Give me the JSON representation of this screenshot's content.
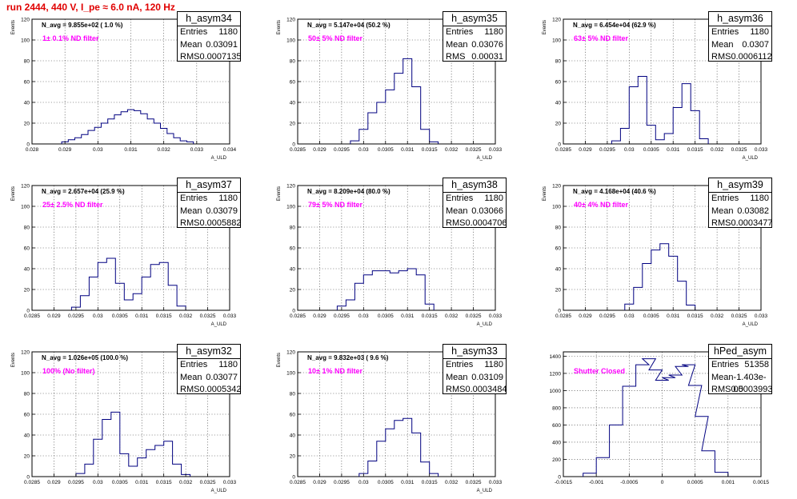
{
  "run_title": "run 2444,   440 V, I_pe ≈ 6.0 nA, 120 Hz",
  "panels": [
    {
      "name": "h_asym34",
      "n_avg": "N_avg = 9.855e+02 ( 1.0 %)",
      "filter": "1± 0.1% ND filter",
      "stats": {
        "entries_label": "Entries",
        "entries": "1180",
        "mean_label": "Mean",
        "mean": "0.03091",
        "rms_label": "RMS",
        "rms": "0.0007135"
      },
      "x_title": "A_ULD",
      "y_title": "Events",
      "x_ticks": [
        "0.028",
        "0.029",
        "0.03",
        "0.031",
        "0.032",
        "0.033",
        "0.034"
      ],
      "y_ticks": [
        "0",
        "20",
        "40",
        "60",
        "80",
        "100",
        "120"
      ]
    },
    {
      "name": "h_asym35",
      "n_avg": "N_avg = 5.147e+04 (50.2 %)",
      "filter": "50± 5% ND filter",
      "stats": {
        "entries_label": "Entries",
        "entries": "1180",
        "mean_label": "Mean",
        "mean": "0.03076",
        "rms_label": "RMS",
        "rms": "0.00031"
      },
      "x_title": "A_ULD",
      "y_title": "Events",
      "x_ticks": [
        "0.0285",
        "0.029",
        "0.0295",
        "0.03",
        "0.0305",
        "0.031",
        "0.0315",
        "0.032",
        "0.0325",
        "0.033"
      ],
      "y_ticks": [
        "0",
        "20",
        "40",
        "60",
        "80",
        "100",
        "120"
      ]
    },
    {
      "name": "h_asym36",
      "n_avg": "N_avg = 6.454e+04 (62.9 %)",
      "filter": "63± 5% ND filter",
      "stats": {
        "entries_label": "Entries",
        "entries": "1180",
        "mean_label": "Mean",
        "mean": "0.0307",
        "rms_label": "RMS",
        "rms": "0.0006112"
      },
      "x_title": "A_ULD",
      "y_title": "Events",
      "x_ticks": [
        "0.0285",
        "0.029",
        "0.0295",
        "0.03",
        "0.0305",
        "0.031",
        "0.0315",
        "0.032",
        "0.0325",
        "0.033"
      ],
      "y_ticks": [
        "0",
        "20",
        "40",
        "60",
        "80",
        "100",
        "120"
      ]
    },
    {
      "name": "h_asym37",
      "n_avg": "N_avg = 2.657e+04 (25.9 %)",
      "filter": "25± 2.5% ND filter",
      "stats": {
        "entries_label": "Entries",
        "entries": "1180",
        "mean_label": "Mean",
        "mean": "0.03079",
        "rms_label": "RMS",
        "rms": "0.0005882"
      },
      "x_title": "A_ULD",
      "y_title": "Events",
      "x_ticks": [
        "0.0285",
        "0.029",
        "0.0295",
        "0.03",
        "0.0305",
        "0.031",
        "0.0315",
        "0.032",
        "0.0325",
        "0.033"
      ],
      "y_ticks": [
        "0",
        "20",
        "40",
        "60",
        "80",
        "100",
        "120"
      ]
    },
    {
      "name": "h_asym38",
      "n_avg": "N_avg = 8.209e+04 (80.0 %)",
      "filter": "79± 5% ND filter",
      "stats": {
        "entries_label": "Entries",
        "entries": "1180",
        "mean_label": "Mean",
        "mean": "0.03066",
        "rms_label": "RMS",
        "rms": "0.0004706"
      },
      "x_title": "A_ULD",
      "y_title": "Events",
      "x_ticks": [
        "0.0285",
        "0.029",
        "0.0295",
        "0.03",
        "0.0305",
        "0.031",
        "0.0315",
        "0.032",
        "0.0325",
        "0.033"
      ],
      "y_ticks": [
        "0",
        "20",
        "40",
        "60",
        "80",
        "100",
        "120"
      ]
    },
    {
      "name": "h_asym39",
      "n_avg": "N_avg = 4.168e+04 (40.6 %)",
      "filter": "40± 4% ND filter",
      "stats": {
        "entries_label": "Entries",
        "entries": "1180",
        "mean_label": "Mean",
        "mean": "0.03082",
        "rms_label": "RMS",
        "rms": "0.0003477"
      },
      "x_title": "A_ULD",
      "y_title": "Events",
      "x_ticks": [
        "0.0285",
        "0.029",
        "0.0295",
        "0.03",
        "0.0305",
        "0.031",
        "0.0315",
        "0.032",
        "0.0325",
        "0.033"
      ],
      "y_ticks": [
        "0",
        "20",
        "40",
        "60",
        "80",
        "100",
        "120"
      ]
    },
    {
      "name": "h_asym32",
      "n_avg": "N_avg = 1.026e+05 (100.0 %)",
      "filter": "100% (No filter)",
      "stats": {
        "entries_label": "Entries",
        "entries": "1180",
        "mean_label": "Mean",
        "mean": "0.03077",
        "rms_label": "RMS",
        "rms": "0.0005342"
      },
      "x_title": "A_ULD",
      "y_title": "Events",
      "x_ticks": [
        "0.0285",
        "0.029",
        "0.0295",
        "0.03",
        "0.0305",
        "0.031",
        "0.0315",
        "0.032",
        "0.0325",
        "0.033"
      ],
      "y_ticks": [
        "0",
        "20",
        "40",
        "60",
        "80",
        "100",
        "120"
      ]
    },
    {
      "name": "h_asym33",
      "n_avg": "N_avg = 9.832e+03 ( 9.6 %)",
      "filter": "10± 1% ND filter",
      "stats": {
        "entries_label": "Entries",
        "entries": "1180",
        "mean_label": "Mean",
        "mean": "0.03109",
        "rms_label": "RMS",
        "rms": "0.0003484"
      },
      "x_title": "A_ULD",
      "y_title": "Events",
      "x_ticks": [
        "0.0285",
        "0.029",
        "0.0295",
        "0.03",
        "0.0305",
        "0.031",
        "0.0315",
        "0.032",
        "0.0325",
        "0.033"
      ],
      "y_ticks": [
        "0",
        "20",
        "40",
        "60",
        "80",
        "100",
        "120"
      ]
    },
    {
      "name": "hPed_asym",
      "n_avg": "",
      "filter": "Shutter Closed",
      "stats": {
        "entries_label": "Entries",
        "entries": "51358",
        "mean_label": "Mean",
        "mean": "-1.403e-05",
        "rms_label": "RMS",
        "rms": "0.0003993"
      },
      "x_title": "",
      "y_title": "",
      "x_ticks": [
        "-0.0015",
        "-0.001",
        "-0.0005",
        "0",
        "0.0005",
        "0.001",
        "0.0015"
      ],
      "y_ticks": [
        "0",
        "200",
        "400",
        "600",
        "800",
        "1000",
        "1200",
        "1400"
      ]
    }
  ],
  "chart_data": [
    {
      "type": "bar",
      "name": "h_asym34",
      "xlim": [
        0.028,
        0.034
      ],
      "ylim": [
        0,
        120
      ],
      "grid": true,
      "x": [
        0.029,
        0.0292,
        0.0294,
        0.0296,
        0.0298,
        0.03,
        0.0302,
        0.0304,
        0.0306,
        0.0308,
        0.031,
        0.0312,
        0.0314,
        0.0316,
        0.0318,
        0.032,
        0.0322,
        0.0324,
        0.0326,
        0.0328
      ],
      "values": [
        2,
        4,
        6,
        9,
        13,
        16,
        20,
        24,
        28,
        31,
        33,
        32,
        29,
        24,
        20,
        15,
        10,
        6,
        3,
        2
      ]
    },
    {
      "type": "bar",
      "name": "h_asym35",
      "xlim": [
        0.0285,
        0.033
      ],
      "ylim": [
        0,
        120
      ],
      "grid": true,
      "x": [
        0.0298,
        0.03,
        0.0302,
        0.0304,
        0.0306,
        0.0308,
        0.031,
        0.0312,
        0.0314,
        0.0316
      ],
      "values": [
        3,
        14,
        30,
        40,
        52,
        68,
        82,
        55,
        14,
        2
      ]
    },
    {
      "type": "bar",
      "name": "h_asym36",
      "xlim": [
        0.0285,
        0.033
      ],
      "ylim": [
        0,
        120
      ],
      "grid": true,
      "x": [
        0.0297,
        0.0299,
        0.0301,
        0.0303,
        0.0305,
        0.0307,
        0.0309,
        0.0311,
        0.0313,
        0.0315,
        0.0317
      ],
      "values": [
        3,
        15,
        55,
        65,
        18,
        4,
        10,
        35,
        58,
        32,
        5
      ]
    },
    {
      "type": "bar",
      "name": "h_asym37",
      "xlim": [
        0.0285,
        0.033
      ],
      "ylim": [
        0,
        120
      ],
      "grid": true,
      "x": [
        0.0295,
        0.0297,
        0.0299,
        0.0301,
        0.0303,
        0.0305,
        0.0307,
        0.0309,
        0.0311,
        0.0313,
        0.0315,
        0.0317,
        0.0319
      ],
      "values": [
        3,
        14,
        32,
        46,
        50,
        26,
        10,
        16,
        32,
        44,
        46,
        24,
        4
      ]
    },
    {
      "type": "bar",
      "name": "h_asym38",
      "xlim": [
        0.0285,
        0.033
      ],
      "ylim": [
        0,
        120
      ],
      "grid": true,
      "x": [
        0.0295,
        0.0297,
        0.0299,
        0.0301,
        0.0303,
        0.0305,
        0.0307,
        0.0309,
        0.0311,
        0.0313,
        0.0315
      ],
      "values": [
        4,
        10,
        26,
        34,
        38,
        38,
        36,
        38,
        40,
        34,
        6
      ]
    },
    {
      "type": "bar",
      "name": "h_asym39",
      "xlim": [
        0.0285,
        0.033
      ],
      "ylim": [
        0,
        120
      ],
      "grid": true,
      "x": [
        0.03,
        0.0302,
        0.0304,
        0.0306,
        0.0308,
        0.031,
        0.0312,
        0.0314
      ],
      "values": [
        6,
        22,
        45,
        58,
        64,
        52,
        28,
        5
      ]
    },
    {
      "type": "bar",
      "name": "h_asym32",
      "xlim": [
        0.0285,
        0.033
      ],
      "ylim": [
        0,
        120
      ],
      "grid": true,
      "x": [
        0.0296,
        0.0298,
        0.03,
        0.0302,
        0.0304,
        0.0306,
        0.0308,
        0.031,
        0.0312,
        0.0314,
        0.0316,
        0.0318,
        0.032
      ],
      "values": [
        3,
        12,
        36,
        55,
        62,
        22,
        10,
        18,
        26,
        30,
        34,
        12,
        2
      ]
    },
    {
      "type": "bar",
      "name": "h_asym33",
      "xlim": [
        0.0285,
        0.033
      ],
      "ylim": [
        0,
        120
      ],
      "grid": true,
      "x": [
        0.03,
        0.0302,
        0.0304,
        0.0306,
        0.0308,
        0.031,
        0.0312,
        0.0314,
        0.0316
      ],
      "values": [
        3,
        15,
        34,
        46,
        54,
        56,
        42,
        14,
        3
      ]
    },
    {
      "type": "bar",
      "name": "hPed_asym",
      "xlim": [
        -0.0015,
        0.0015
      ],
      "ylim": [
        0,
        1450
      ],
      "grid": true,
      "x": [
        -0.0011,
        -0.0009,
        -0.0007,
        -0.0005,
        -0.0003,
        -0.0002,
        -0.0001,
        0.0,
        0.0001,
        0.0002,
        0.0003,
        0.0004,
        0.0005,
        0.0006,
        0.0007,
        0.0009
      ],
      "values": [
        40,
        220,
        600,
        1050,
        1300,
        1370,
        1240,
        1120,
        1150,
        1180,
        1280,
        1300,
        1060,
        700,
        300,
        50
      ]
    }
  ]
}
